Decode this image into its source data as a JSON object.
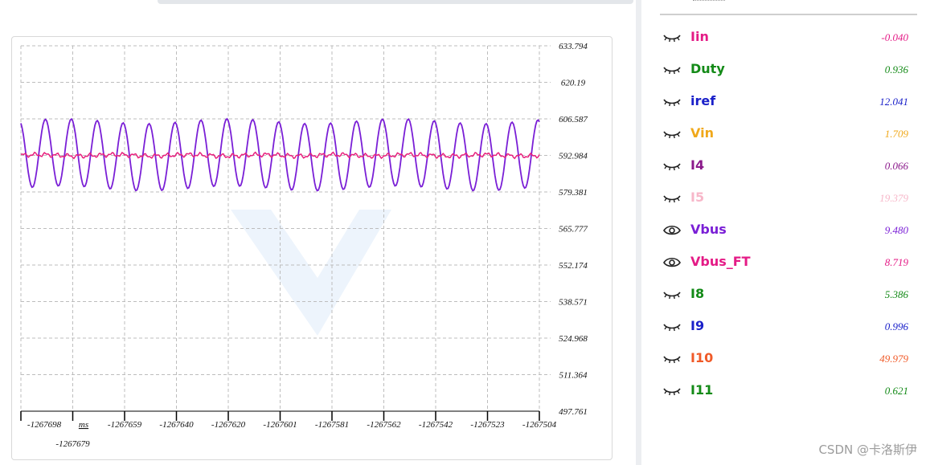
{
  "chart_data": {
    "type": "line",
    "xlabel": "ms",
    "x_ticks": [
      "-1267698",
      "-1267679",
      "-1267659",
      "-1267640",
      "-1267620",
      "-1267601",
      "-1267581",
      "-1267562",
      "-1267542",
      "-1267523",
      "-1267504"
    ],
    "y_ticks": [
      "633.794",
      "620.19",
      "606.587",
      "592.984",
      "579.381",
      "565.777",
      "552.174",
      "538.571",
      "524.968",
      "511.364",
      "497.761"
    ],
    "ylim": [
      497.761,
      633.794
    ],
    "xlim": [
      -1267698,
      -1267504
    ],
    "grid": true,
    "series": [
      {
        "name": "Vbus",
        "color": "#7a1fd6",
        "pattern": "sine",
        "center": 593.2,
        "amplitude": 12.5,
        "cycles": 20,
        "values": []
      },
      {
        "name": "Vbus_FT",
        "color": "#e8207e",
        "pattern": "noise",
        "center": 593.0,
        "amplitude": 0.6,
        "values": []
      }
    ]
  },
  "legend": {
    "items": [
      {
        "name": "Iin",
        "value": "-0.040",
        "color": "#e41b86",
        "icon": "eye-closed-icon"
      },
      {
        "name": "Duty",
        "value": "0.936",
        "color": "#138a17",
        "icon": "eye-closed-icon"
      },
      {
        "name": "iref",
        "value": "12.041",
        "color": "#1a20c9",
        "icon": "eye-closed-icon"
      },
      {
        "name": "Vin",
        "value": "1.709",
        "color": "#f0a81a",
        "icon": "eye-closed-icon"
      },
      {
        "name": "I4",
        "value": "0.066",
        "color": "#8b1a8b",
        "icon": "eye-closed-icon"
      },
      {
        "name": "I5",
        "value": "19.379",
        "color": "#f7b7c9",
        "icon": "eye-closed-icon"
      },
      {
        "name": "Vbus",
        "value": "9.480",
        "color": "#7a1fd6",
        "icon": "eye-open-icon"
      },
      {
        "name": "Vbus_FT",
        "value": "8.719",
        "color": "#e41b86",
        "icon": "eye-open-icon"
      },
      {
        "name": "I8",
        "value": "5.386",
        "color": "#138a17",
        "icon": "eye-closed-icon"
      },
      {
        "name": "I9",
        "value": "0.996",
        "color": "#1a20c9",
        "icon": "eye-closed-icon"
      },
      {
        "name": "I10",
        "value": "49.979",
        "color": "#f05a28",
        "icon": "eye-closed-icon"
      },
      {
        "name": "I11",
        "value": "0.621",
        "color": "#138a17",
        "icon": "eye-closed-icon"
      }
    ]
  },
  "watermark": "CSDN @卡洛斯伊"
}
